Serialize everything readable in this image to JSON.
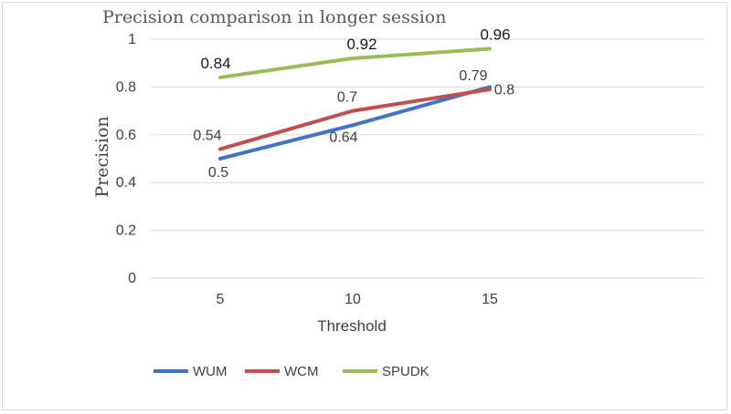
{
  "chart_data": {
    "type": "line",
    "title": "Precision comparison in longer session",
    "xlabel": "Threshold",
    "ylabel": "Precision",
    "categories": [
      "5",
      "10",
      "15"
    ],
    "ylim": [
      0,
      1
    ],
    "yticks": [
      "0",
      "0.2",
      "0.4",
      "0.6",
      "0.8",
      "1"
    ],
    "grid": true,
    "legend_position": "bottom-left",
    "series": [
      {
        "name": "WUM",
        "values": [
          0.5,
          0.64,
          0.8
        ],
        "labels": [
          "0.5",
          "0.64",
          "0.8"
        ],
        "color": "#4472c4"
      },
      {
        "name": "WCM",
        "values": [
          0.54,
          0.7,
          0.79
        ],
        "labels": [
          "0.54",
          "0.7",
          "0.79"
        ],
        "color": "#c0504d"
      },
      {
        "name": "SPUDK",
        "values": [
          0.84,
          0.92,
          0.96
        ],
        "labels": [
          "0.84",
          "0.92",
          "0.96"
        ],
        "color": "#9bbb59"
      }
    ]
  }
}
